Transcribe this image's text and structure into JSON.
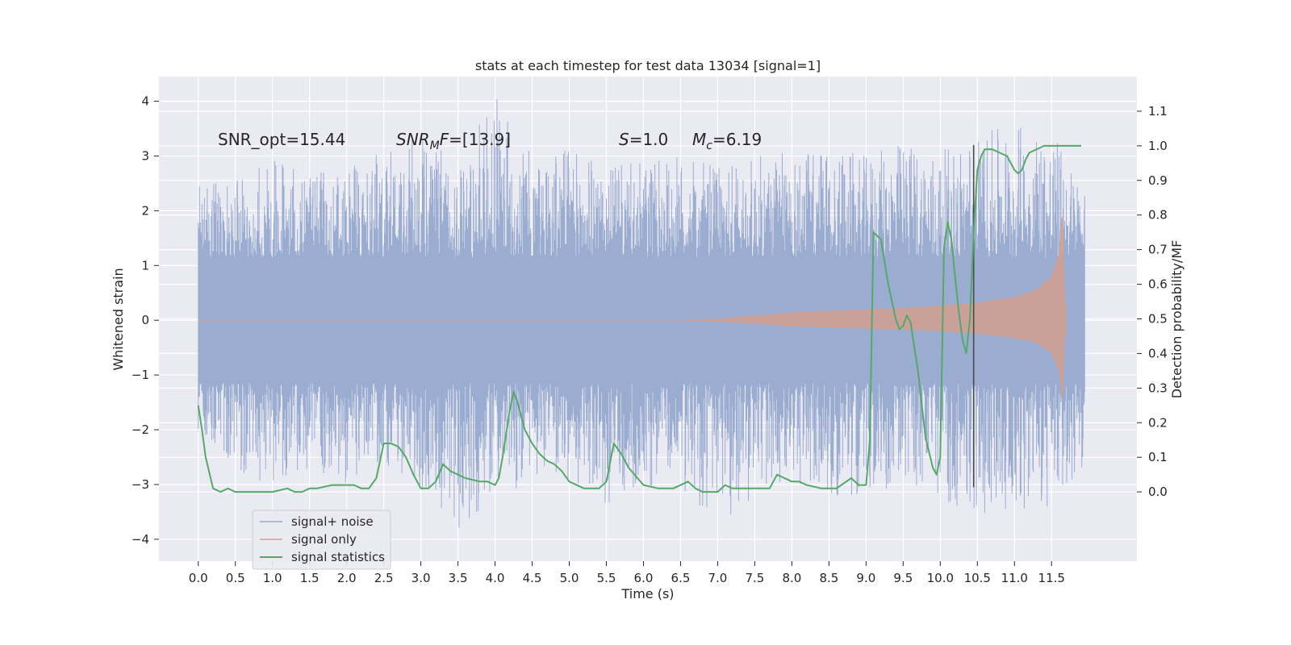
{
  "chart_data": {
    "type": "line",
    "title": "stats at each timestep for test data 13034 [signal=1]",
    "xlabel": "Time (s)",
    "ylabel": "Whitened strain",
    "ylabel_right": "Detection probability/MF",
    "xlim": [
      -0.53,
      12.65
    ],
    "ylim": [
      -4.4,
      4.45
    ],
    "ylim_right": [
      -0.2,
      1.2
    ],
    "x_ticks": [
      "0.0",
      "0.5",
      "1.0",
      "1.5",
      "2.0",
      "2.5",
      "3.0",
      "3.5",
      "4.0",
      "4.5",
      "5.0",
      "5.5",
      "6.0",
      "6.5",
      "7.0",
      "7.5",
      "8.0",
      "8.5",
      "9.0",
      "9.5",
      "10.0",
      "10.5",
      "11.0",
      "11.5"
    ],
    "y_ticks": [
      "4",
      "3",
      "2",
      "1",
      "0",
      "−1",
      "−2",
      "−3",
      "−4"
    ],
    "y_right_ticks": [
      "1.1",
      "1.0",
      "0.9",
      "0.8",
      "0.7",
      "0.6",
      "0.5",
      "0.4",
      "0.3",
      "0.2",
      "0.1",
      "0.0"
    ],
    "grid": true,
    "legend_position": "lower-left",
    "colors": {
      "noise": "#97a9cf",
      "signal": "#d3a08f",
      "stat": "#55a868",
      "marker": "#4a4a4a",
      "plot_bg": "#eaeaf2",
      "grid": "#ffffff"
    },
    "annotations": [
      {
        "id": "snr-opt",
        "text": "SNR_opt=15.44"
      },
      {
        "id": "snr-mf",
        "text": "SNR",
        "sub": "M",
        "suffix": "F=[13.9]"
      },
      {
        "id": "s",
        "text": "S",
        "suffix": "=1.0"
      },
      {
        "id": "mc",
        "text": "M",
        "sub": "c",
        "suffix": "=6.19"
      }
    ],
    "marker_time": 10.45,
    "noise_envelope": {
      "x": [
        0.0,
        0.5,
        1.0,
        1.5,
        2.0,
        2.5,
        3.0,
        3.5,
        4.0,
        4.5,
        5.0,
        5.5,
        6.0,
        6.5,
        7.0,
        7.5,
        8.0,
        8.5,
        9.0,
        9.5,
        10.0,
        10.5,
        11.0,
        11.5,
        11.95
      ],
      "upper": [
        2.5,
        2.6,
        3.0,
        2.7,
        2.8,
        3.1,
        3.4,
        2.9,
        4.1,
        3.0,
        3.2,
        2.8,
        2.9,
        3.0,
        2.8,
        3.0,
        3.1,
        3.2,
        3.0,
        3.3,
        3.1,
        3.4,
        3.6,
        3.5,
        2.4
      ],
      "lower": [
        -2.0,
        -2.8,
        -3.0,
        -2.7,
        -3.0,
        -2.6,
        -3.1,
        -3.9,
        -3.2,
        -3.0,
        -2.9,
        -3.4,
        -3.0,
        -3.1,
        -3.7,
        -3.3,
        -3.0,
        -3.2,
        -3.2,
        -3.0,
        -3.3,
        -3.6,
        -3.4,
        -3.6,
        -2.6
      ]
    },
    "signal_envelope": {
      "x": [
        6.5,
        7.0,
        7.5,
        8.0,
        8.5,
        9.0,
        9.5,
        10.0,
        10.5,
        11.0,
        11.3,
        11.5,
        11.6,
        11.65,
        11.67,
        11.7
      ],
      "amplitude": [
        0.0,
        0.02,
        0.08,
        0.14,
        0.17,
        0.19,
        0.22,
        0.26,
        0.32,
        0.42,
        0.55,
        0.8,
        1.2,
        1.9,
        0.6,
        0.0
      ]
    },
    "series": [
      {
        "name": "signal statistics",
        "axis": "right",
        "x": [
          0.0,
          0.05,
          0.1,
          0.2,
          0.3,
          0.4,
          0.5,
          0.6,
          0.7,
          0.8,
          1.0,
          1.2,
          1.3,
          1.4,
          1.5,
          1.6,
          1.8,
          2.0,
          2.1,
          2.2,
          2.3,
          2.4,
          2.5,
          2.6,
          2.7,
          2.8,
          2.9,
          3.0,
          3.1,
          3.2,
          3.3,
          3.4,
          3.5,
          3.6,
          3.8,
          3.9,
          4.0,
          4.05,
          4.1,
          4.2,
          4.25,
          4.3,
          4.4,
          4.5,
          4.6,
          4.7,
          4.8,
          4.9,
          5.0,
          5.2,
          5.4,
          5.5,
          5.6,
          5.7,
          5.8,
          6.0,
          6.2,
          6.4,
          6.6,
          6.7,
          6.8,
          7.0,
          7.1,
          7.2,
          7.4,
          7.6,
          7.7,
          7.8,
          7.9,
          8.0,
          8.1,
          8.2,
          8.4,
          8.6,
          8.8,
          8.9,
          9.0,
          9.05,
          9.1,
          9.15,
          9.2,
          9.3,
          9.4,
          9.45,
          9.5,
          9.55,
          9.6,
          9.7,
          9.8,
          9.9,
          9.95,
          10.0,
          10.05,
          10.1,
          10.15,
          10.2,
          10.25,
          10.3,
          10.35,
          10.4,
          10.45,
          10.5,
          10.55,
          10.6,
          10.7,
          10.8,
          10.9,
          11.0,
          11.05,
          11.1,
          11.15,
          11.2,
          11.3,
          11.4,
          11.5,
          11.6,
          11.7,
          11.8,
          11.9
        ],
        "values": [
          0.25,
          0.18,
          0.1,
          0.01,
          0.0,
          0.01,
          0.0,
          0.0,
          0.0,
          0.0,
          0.0,
          0.01,
          0.0,
          0.0,
          0.01,
          0.01,
          0.02,
          0.02,
          0.02,
          0.01,
          0.01,
          0.04,
          0.14,
          0.14,
          0.13,
          0.1,
          0.05,
          0.01,
          0.01,
          0.03,
          0.08,
          0.06,
          0.05,
          0.04,
          0.03,
          0.03,
          0.02,
          0.04,
          0.1,
          0.24,
          0.29,
          0.26,
          0.18,
          0.14,
          0.11,
          0.09,
          0.08,
          0.06,
          0.03,
          0.01,
          0.01,
          0.03,
          0.14,
          0.11,
          0.07,
          0.02,
          0.01,
          0.01,
          0.03,
          0.01,
          0.0,
          0.0,
          0.02,
          0.01,
          0.01,
          0.01,
          0.01,
          0.05,
          0.04,
          0.03,
          0.03,
          0.02,
          0.01,
          0.01,
          0.04,
          0.02,
          0.02,
          0.15,
          0.75,
          0.74,
          0.73,
          0.6,
          0.5,
          0.47,
          0.48,
          0.51,
          0.49,
          0.35,
          0.16,
          0.07,
          0.05,
          0.1,
          0.7,
          0.78,
          0.73,
          0.62,
          0.52,
          0.44,
          0.4,
          0.5,
          0.75,
          0.93,
          0.97,
          0.99,
          0.99,
          0.98,
          0.97,
          0.93,
          0.92,
          0.93,
          0.96,
          0.98,
          0.99,
          1.0,
          1.0,
          1.0,
          1.0,
          1.0,
          1.0
        ]
      }
    ],
    "legend": [
      {
        "label": "signal+ noise",
        "color_key": "noise"
      },
      {
        "label": "signal only",
        "color_key": "signal"
      },
      {
        "label": "signal statistics",
        "color_key": "stat"
      }
    ]
  }
}
